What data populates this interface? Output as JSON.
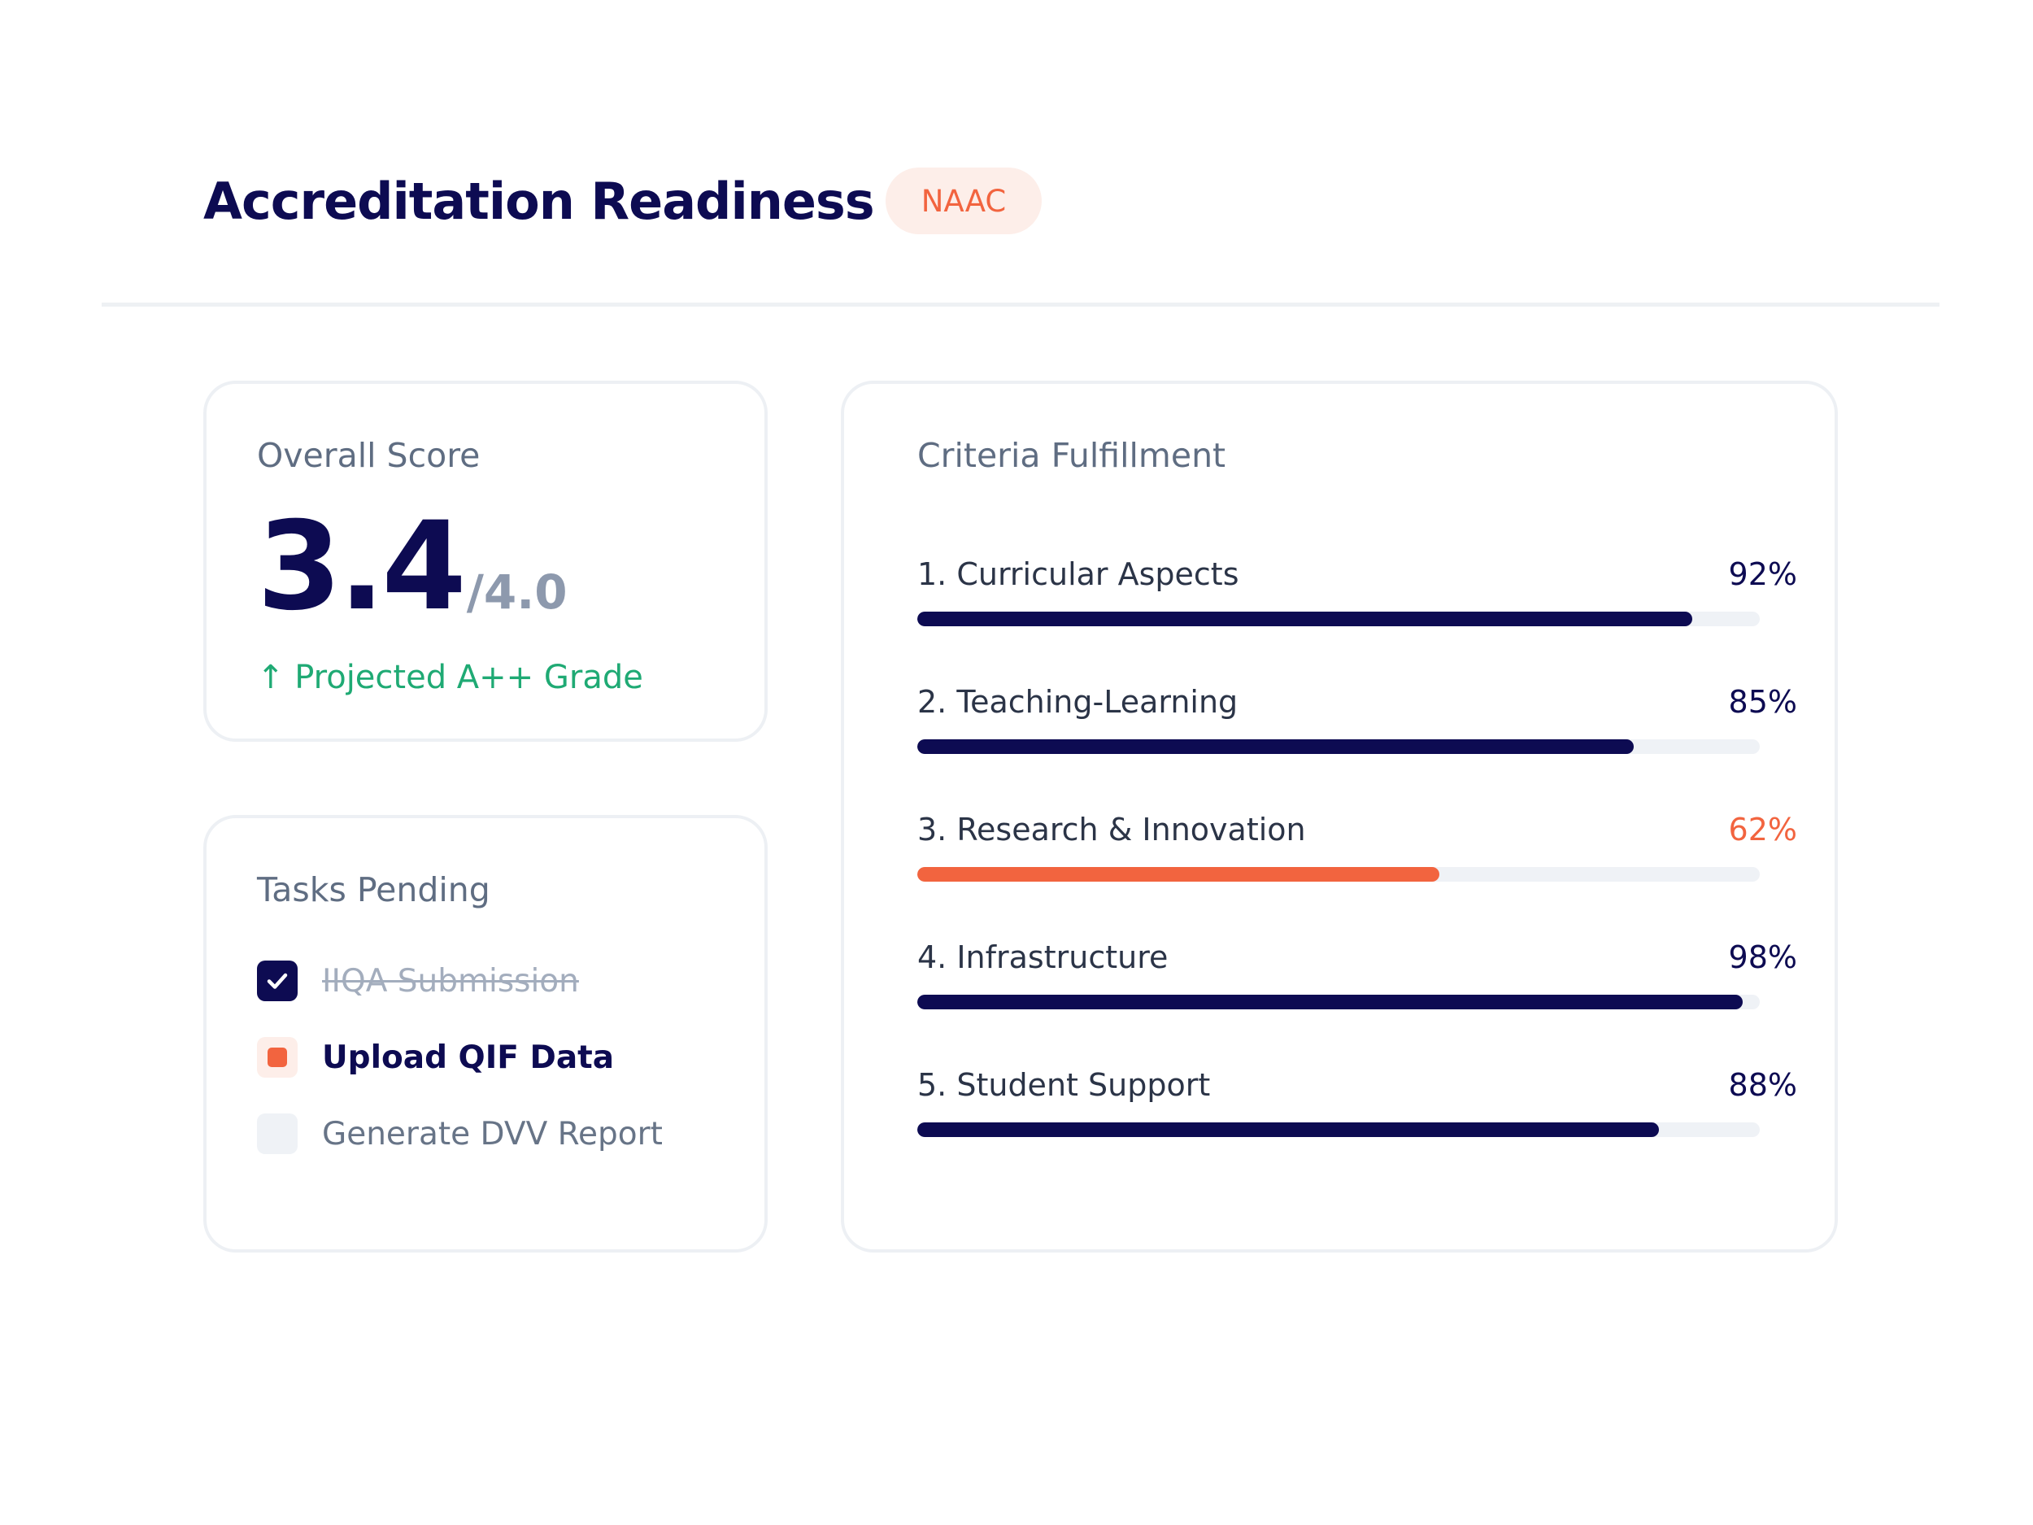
{
  "header": {
    "title": "Accreditation Readiness",
    "badge": "NAAC"
  },
  "score_card": {
    "label": "Overall Score",
    "value": "3.4",
    "max": "/4.0",
    "projection": "↑ Projected A++ Grade"
  },
  "tasks_card": {
    "label": "Tasks Pending",
    "items": [
      {
        "label": "IIQA Submission",
        "state": "done"
      },
      {
        "label": "Upload QIF Data",
        "state": "in-progress"
      },
      {
        "label": "Generate DVV Report",
        "state": "pending"
      }
    ]
  },
  "criteria_card": {
    "label": "Criteria Fulfillment",
    "items": [
      {
        "name": "1. Curricular Aspects",
        "percent_label": "92%",
        "value": 0.92,
        "status": "normal"
      },
      {
        "name": "2. Teaching-Learning",
        "percent_label": "85%",
        "value": 0.85,
        "status": "normal"
      },
      {
        "name": "3. Research & Innovation",
        "percent_label": "62%",
        "value": 0.62,
        "status": "warning"
      },
      {
        "name": "4. Infrastructure",
        "percent_label": "98%",
        "value": 0.98,
        "status": "normal"
      },
      {
        "name": "5. Student Support",
        "percent_label": "88%",
        "value": 0.88,
        "status": "normal"
      }
    ]
  },
  "colors": {
    "primary": "#0d0b52",
    "accent": "#f2643f",
    "success": "#1faa74",
    "muted": "#5f6d82",
    "track": "#eff2f6"
  },
  "icons": {
    "task_done": "check-icon",
    "task_in_progress": "square-dot-icon",
    "projection_trend": "arrow-up-icon"
  }
}
